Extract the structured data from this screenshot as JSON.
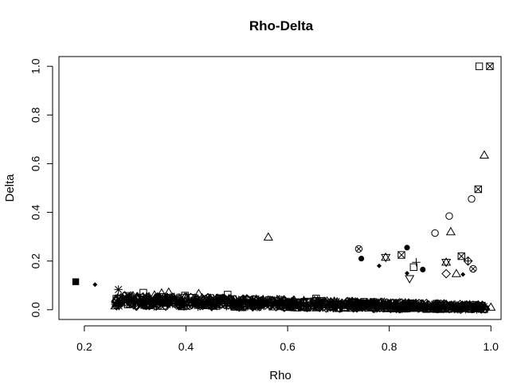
{
  "chart_data": {
    "type": "scatter",
    "title": "Rho-Delta",
    "xlabel": "Rho",
    "ylabel": "Delta",
    "xlim": [
      0.15,
      1.02
    ],
    "ylim": [
      -0.04,
      1.04
    ],
    "xticks": [
      0.2,
      0.4,
      0.6,
      0.8,
      1.0
    ],
    "xtick_labels": [
      "0.2",
      "0.4",
      "0.6",
      "0.8",
      "1.0"
    ],
    "yticks": [
      0.0,
      0.2,
      0.4,
      0.6,
      0.8,
      1.0
    ],
    "ytick_labels": [
      "0.0",
      "0.2",
      "0.4",
      "0.6",
      "0.8",
      "1.0"
    ],
    "grid": false,
    "points": [
      {
        "x": 0.183,
        "y": 0.115,
        "pch": "filled-square"
      },
      {
        "x": 0.221,
        "y": 0.103,
        "pch": "filled-diamond"
      },
      {
        "x": 0.267,
        "y": 0.083,
        "pch": "asterisk"
      },
      {
        "x": 0.263,
        "y": 0.045,
        "pch": "square"
      },
      {
        "x": 0.295,
        "y": 0.037,
        "pch": "square"
      },
      {
        "x": 0.316,
        "y": 0.07,
        "pch": "square"
      },
      {
        "x": 0.338,
        "y": 0.06,
        "pch": "triangle"
      },
      {
        "x": 0.352,
        "y": 0.068,
        "pch": "triangle"
      },
      {
        "x": 0.366,
        "y": 0.072,
        "pch": "triangle"
      },
      {
        "x": 0.398,
        "y": 0.058,
        "pch": "square"
      },
      {
        "x": 0.425,
        "y": 0.066,
        "pch": "triangle"
      },
      {
        "x": 0.482,
        "y": 0.062,
        "pch": "square"
      },
      {
        "x": 0.562,
        "y": 0.298,
        "pch": "triangle"
      },
      {
        "x": 0.656,
        "y": 0.046,
        "pch": "square"
      },
      {
        "x": 0.74,
        "y": 0.25,
        "pch": "circle-x"
      },
      {
        "x": 0.745,
        "y": 0.21,
        "pch": "filled-circle"
      },
      {
        "x": 0.78,
        "y": 0.18,
        "pch": "filled-diamond"
      },
      {
        "x": 0.793,
        "y": 0.215,
        "pch": "hourglass"
      },
      {
        "x": 0.824,
        "y": 0.225,
        "pch": "square-x"
      },
      {
        "x": 0.835,
        "y": 0.255,
        "pch": "filled-circle"
      },
      {
        "x": 0.835,
        "y": 0.15,
        "pch": "filled-diamond"
      },
      {
        "x": 0.84,
        "y": 0.128,
        "pch": "triangle-down"
      },
      {
        "x": 0.848,
        "y": 0.175,
        "pch": "square"
      },
      {
        "x": 0.853,
        "y": 0.195,
        "pch": "plus"
      },
      {
        "x": 0.866,
        "y": 0.165,
        "pch": "filled-circle"
      },
      {
        "x": 0.89,
        "y": 0.315,
        "pch": "circle"
      },
      {
        "x": 0.912,
        "y": 0.195,
        "pch": "hourglass"
      },
      {
        "x": 0.912,
        "y": 0.148,
        "pch": "diamond"
      },
      {
        "x": 0.918,
        "y": 0.385,
        "pch": "circle"
      },
      {
        "x": 0.921,
        "y": 0.32,
        "pch": "triangle"
      },
      {
        "x": 0.932,
        "y": 0.148,
        "pch": "triangle"
      },
      {
        "x": 0.942,
        "y": 0.22,
        "pch": "square-x"
      },
      {
        "x": 0.945,
        "y": 0.145,
        "pch": "filled-diamond"
      },
      {
        "x": 0.955,
        "y": 0.2,
        "pch": "diamond-plus"
      },
      {
        "x": 0.962,
        "y": 0.455,
        "pch": "circle"
      },
      {
        "x": 0.965,
        "y": 0.168,
        "pch": "circle-x"
      },
      {
        "x": 0.975,
        "y": 0.495,
        "pch": "square-x"
      },
      {
        "x": 0.977,
        "y": 1.0,
        "pch": "square"
      },
      {
        "x": 0.987,
        "y": 0.635,
        "pch": "triangle"
      },
      {
        "x": 0.998,
        "y": 1.0,
        "pch": "square-x"
      },
      {
        "x": 1.0,
        "y": 0.01,
        "pch": "triangle"
      },
      {
        "x": 0.975,
        "y": 0.02,
        "pch": "diamond"
      },
      {
        "x": 0.74,
        "y": 0.03,
        "pch": "filled-square"
      },
      {
        "x": 0.57,
        "y": 0.038,
        "pch": "diamond"
      },
      {
        "x": 0.44,
        "y": 0.04,
        "pch": "diamond"
      },
      {
        "x": 0.31,
        "y": 0.05,
        "pch": "square"
      }
    ],
    "dense_band": {
      "description_hidden": true,
      "x_range": [
        0.26,
        0.99
      ],
      "y_at_start": [
        0.015,
        0.06
      ],
      "y_at_end": [
        0.0,
        0.02
      ],
      "count": 1100
    }
  }
}
